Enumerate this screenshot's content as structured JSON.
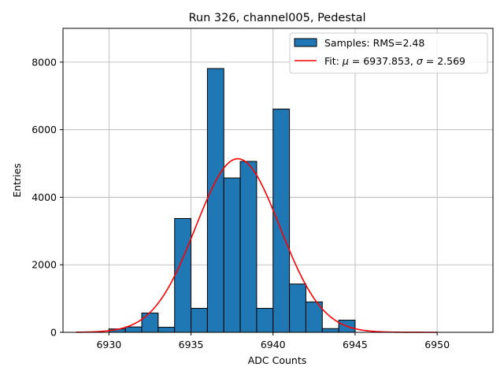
{
  "chart_data": {
    "type": "bar",
    "title": "Run 326, channel005, Pedestal",
    "xlabel": "ADC Counts",
    "ylabel": "Entries",
    "xlim": [
      6927.2,
      6953.4
    ],
    "ylim": [
      0,
      9000
    ],
    "grid": true,
    "legend_position": "top-right",
    "xticks": [
      6930,
      6935,
      6940,
      6945,
      6950
    ],
    "yticks": [
      0,
      2000,
      4000,
      6000,
      8000
    ],
    "histogram": {
      "name": "Samples: RMS=2.48",
      "color": "#1f77b4",
      "edge_color": "#000000",
      "bin_width": 1,
      "bins": [
        {
          "x": 6930,
          "value": 100
        },
        {
          "x": 6931,
          "value": 160
        },
        {
          "x": 6932,
          "value": 570
        },
        {
          "x": 6933,
          "value": 150
        },
        {
          "x": 6934,
          "value": 3370
        },
        {
          "x": 6935,
          "value": 710
        },
        {
          "x": 6936,
          "value": 7810
        },
        {
          "x": 6937,
          "value": 4570
        },
        {
          "x": 6938,
          "value": 5060
        },
        {
          "x": 6939,
          "value": 710
        },
        {
          "x": 6940,
          "value": 6610
        },
        {
          "x": 6941,
          "value": 1430
        },
        {
          "x": 6942,
          "value": 900
        },
        {
          "x": 6943,
          "value": 110
        },
        {
          "x": 6944,
          "value": 360
        }
      ]
    },
    "fit": {
      "label_prefix": "Fit: ",
      "mu_symbol": "μ",
      "sigma_symbol": "σ",
      "mu": 6937.853,
      "sigma": 2.569,
      "mu_text": "6937.853",
      "sigma_text": "2.569",
      "amplitude": 5140,
      "x_range": [
        6928,
        6950
      ],
      "color": "#ff0000"
    }
  }
}
